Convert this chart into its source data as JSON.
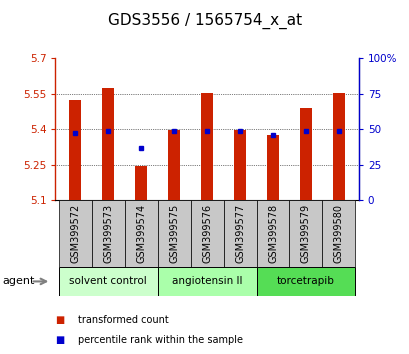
{
  "title": "GDS3556 / 1565754_x_at",
  "samples": [
    "GSM399572",
    "GSM399573",
    "GSM399574",
    "GSM399575",
    "GSM399576",
    "GSM399577",
    "GSM399578",
    "GSM399579",
    "GSM399580"
  ],
  "transformed_counts": [
    5.525,
    5.575,
    5.245,
    5.395,
    5.555,
    5.395,
    5.375,
    5.49,
    5.555
  ],
  "percentile_ranks": [
    47,
    49,
    37,
    49,
    49,
    49,
    46,
    49,
    49
  ],
  "bar_bottom": 5.1,
  "ylim_left": [
    5.1,
    5.7
  ],
  "ylim_right": [
    0,
    100
  ],
  "yticks_left": [
    5.1,
    5.25,
    5.4,
    5.55,
    5.7
  ],
  "yticks_right": [
    0,
    25,
    50,
    75,
    100
  ],
  "bar_color": "#cc2200",
  "dot_color": "#0000cc",
  "group_colors": [
    "#ccffcc",
    "#aaffaa",
    "#55dd55"
  ],
  "groups": [
    {
      "label": "solvent control",
      "indices": [
        0,
        1,
        2
      ]
    },
    {
      "label": "angiotensin II",
      "indices": [
        3,
        4,
        5
      ]
    },
    {
      "label": "torcetrapib",
      "indices": [
        6,
        7,
        8
      ]
    }
  ],
  "agent_label": "agent",
  "legend_bar_label": "transformed count",
  "legend_dot_label": "percentile rank within the sample",
  "sample_box_color": "#c8c8c8",
  "title_fontsize": 11,
  "tick_fontsize": 7.5,
  "label_fontsize": 7,
  "group_fontsize": 7.5,
  "legend_fontsize": 7
}
